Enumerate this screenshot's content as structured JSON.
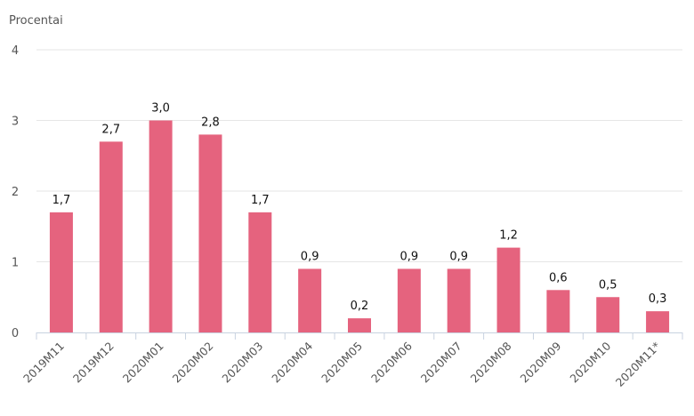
{
  "chart_data": {
    "type": "bar",
    "ylabel": "Procentai",
    "categories": [
      "2019M11",
      "2019M12",
      "2020M01",
      "2020M02",
      "2020M03",
      "2020M04",
      "2020M05",
      "2020M06",
      "2020M07",
      "2020M08",
      "2020M09",
      "2020M10",
      "2020M11*"
    ],
    "values": [
      1.7,
      2.7,
      3.0,
      2.8,
      1.7,
      0.9,
      0.2,
      0.9,
      0.9,
      1.2,
      0.6,
      0.5,
      0.3
    ],
    "data_labels": [
      "1,7",
      "2,7",
      "3,0",
      "2,8",
      "1,7",
      "0,9",
      "0,2",
      "0,9",
      "0,9",
      "1,2",
      "0,6",
      "0,5",
      "0,3"
    ],
    "yticks": [
      0,
      1,
      2,
      3,
      4
    ],
    "ytick_labels": [
      "0",
      "1",
      "2",
      "3",
      "4"
    ],
    "ylim": [
      0,
      4
    ],
    "grid": true,
    "legend": "none",
    "colors": {
      "bar": "#e5637e",
      "grid": "#e6e6e6",
      "axis": "#c8d2e0",
      "text": "#555555"
    }
  }
}
